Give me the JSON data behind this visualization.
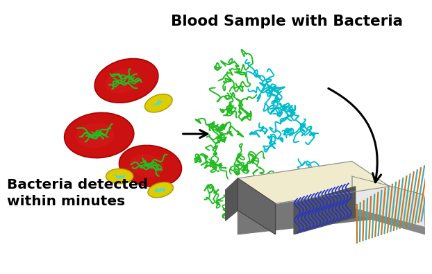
{
  "title1": "Blood Sample with Bacteria",
  "title2": "Bacteria detected\nwithin minutes",
  "bg_color": "#ffffff",
  "rbc_color": "#cc1111",
  "rbc_dark": "#aa0000",
  "bacteria_green": "#22bb22",
  "bacteria_cyan": "#00bbcc",
  "bacteria_yellow": "#ddcc00",
  "sensor_top": "#f0ebcc",
  "sensor_gray_dark": "#555555",
  "sensor_gray_mid": "#777777",
  "sensor_gray_light": "#999999",
  "sensor_blue": "#2233cc",
  "sensor_orange": "#cc7722",
  "sensor_teal": "#44aaaa"
}
